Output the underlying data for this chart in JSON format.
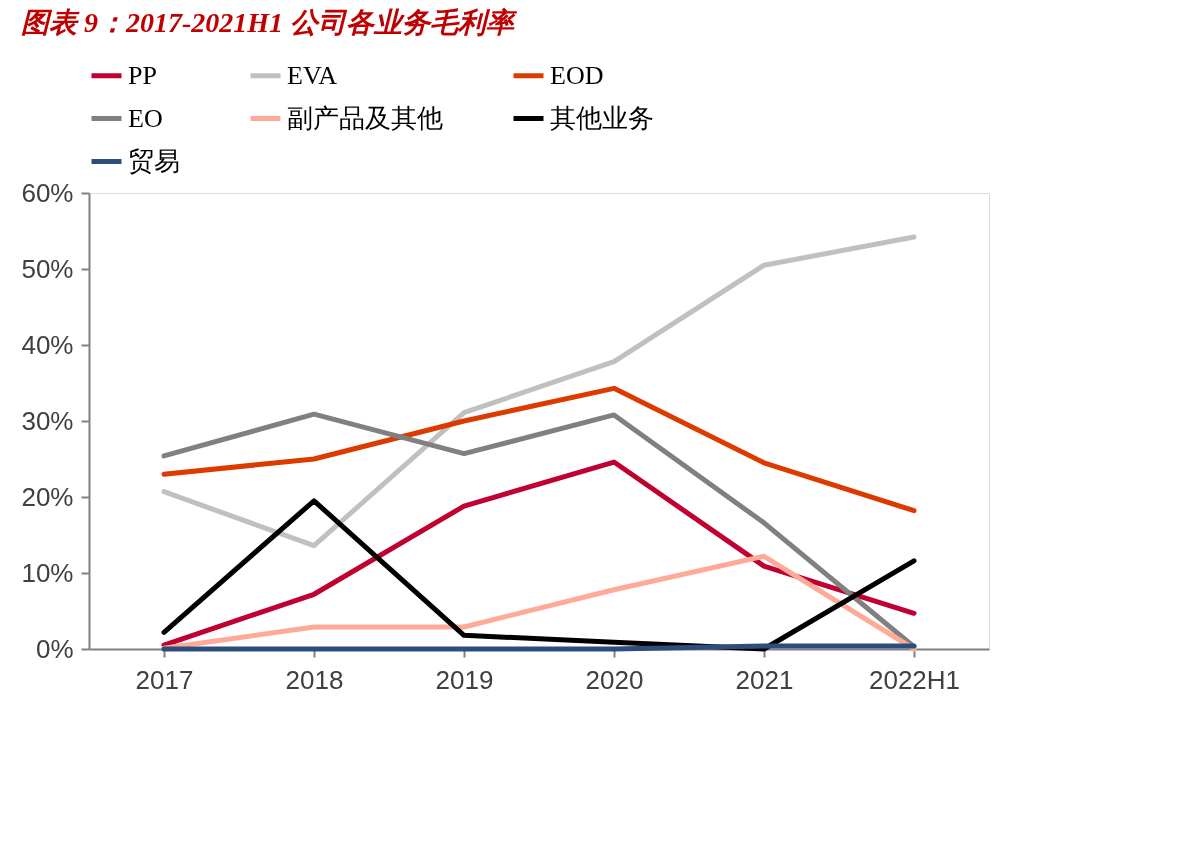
{
  "chart_data": {
    "type": "line",
    "title": "图表 9：2017-2021H1 公司各业务毛利率",
    "categories": [
      "2017",
      "2018",
      "2019",
      "2020",
      "2021",
      "2022H1"
    ],
    "series": [
      {
        "name": "PP",
        "color": "#c00030",
        "values": [
          0.5,
          7.2,
          18.8,
          24.6,
          10.9,
          4.7
        ]
      },
      {
        "name": "EVA",
        "color": "#c0c0c0",
        "values": [
          20.7,
          13.6,
          31.1,
          37.8,
          50.5,
          54.2
        ]
      },
      {
        "name": "EOD",
        "color": "#dd3a00",
        "values": [
          23.0,
          25.0,
          30.0,
          34.3,
          24.5,
          18.2
        ]
      },
      {
        "name": "EO",
        "color": "#808080",
        "values": [
          25.4,
          30.9,
          25.7,
          30.8,
          16.6,
          0.3
        ]
      },
      {
        "name": "副产品及其他",
        "color": "#ffaa98",
        "values": [
          0.1,
          2.9,
          2.9,
          7.8,
          12.2,
          0
        ]
      },
      {
        "name": "其他业务",
        "color": "#000000",
        "values": [
          2.2,
          19.5,
          1.8,
          0.9,
          0,
          11.6
        ]
      },
      {
        "name": "贸易",
        "color": "#2d4d7a",
        "values": [
          0,
          0,
          0,
          0,
          0.4,
          0.4
        ]
      }
    ],
    "ylim": [
      0,
      60
    ],
    "yticks": [
      {
        "value": 0,
        "label": "0%"
      },
      {
        "value": 10,
        "label": "10%"
      },
      {
        "value": 20,
        "label": "20%"
      },
      {
        "value": 30,
        "label": "30%"
      },
      {
        "value": 40,
        "label": "40%"
      },
      {
        "value": 50,
        "label": "50%"
      },
      {
        "value": 60,
        "label": "60%"
      }
    ],
    "grid": false,
    "legend": "top",
    "marker": "none",
    "line_style": "solid"
  }
}
